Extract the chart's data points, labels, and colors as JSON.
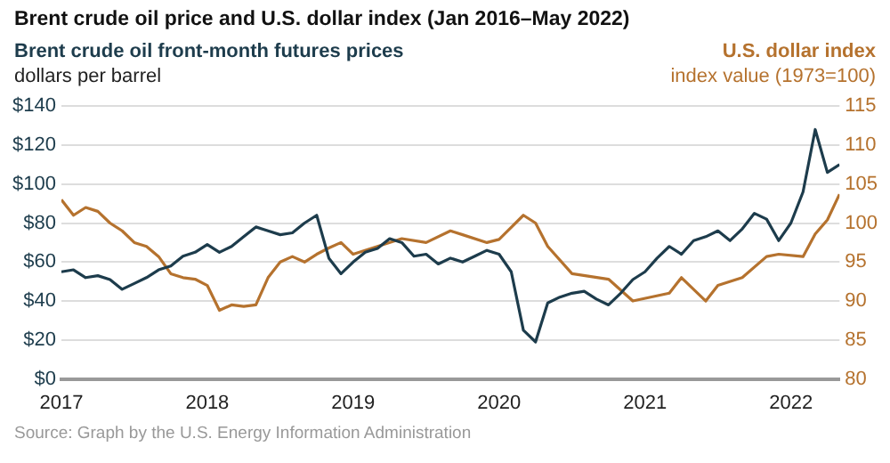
{
  "chart_data": {
    "type": "line",
    "title": "Brent crude oil price and U.S. dollar index (Jan 2016–May 2022)",
    "ylabel": "dollars per barrel",
    "y2label": "index value (1973=100)",
    "annotations": [
      "Source: Graph by the U.S. Energy Information Administration"
    ],
    "series": [
      {
        "name": "Brent crude oil front-month futures prices",
        "color": "#1d3c4c",
        "x": [
          "2017-01",
          "2017-02",
          "2017-03",
          "2017-04",
          "2017-05",
          "2017-06",
          "2017-07",
          "2017-08",
          "2017-09",
          "2017-10",
          "2017-11",
          "2017-12",
          "2018-01",
          "2018-02",
          "2018-03",
          "2018-04",
          "2018-05",
          "2018-06",
          "2018-07",
          "2018-08",
          "2018-09",
          "2018-10",
          "2018-11",
          "2018-12",
          "2019-01",
          "2019-02",
          "2019-03",
          "2019-04",
          "2019-05",
          "2019-06",
          "2019-07",
          "2019-08",
          "2019-09",
          "2019-10",
          "2019-11",
          "2019-12",
          "2020-01",
          "2020-02",
          "2020-03",
          "2020-04",
          "2020-05",
          "2020-06",
          "2020-07",
          "2020-08",
          "2020-09",
          "2020-10",
          "2020-11",
          "2020-12",
          "2021-01",
          "2021-02",
          "2021-03",
          "2021-04",
          "2021-05",
          "2021-06",
          "2021-07",
          "2021-08",
          "2021-09",
          "2021-10",
          "2021-11",
          "2021-12",
          "2022-01",
          "2022-02",
          "2022-03",
          "2022-04",
          "2022-05"
        ],
        "values": [
          55,
          56,
          52,
          53,
          51,
          46,
          49,
          52,
          56,
          58,
          63,
          65,
          69,
          65,
          68,
          73,
          78,
          76,
          74,
          75,
          80,
          84,
          62,
          54,
          60,
          65,
          67,
          72,
          70,
          63,
          64,
          59,
          62,
          60,
          63,
          66,
          64,
          55,
          25,
          19,
          39,
          42,
          44,
          45,
          41,
          38,
          44,
          51,
          55,
          62,
          68,
          64,
          71,
          73,
          76,
          71,
          77,
          85,
          82,
          71,
          80,
          96,
          128,
          106,
          110
        ]
      },
      {
        "name": "U.S. dollar index",
        "color": "#b5722e",
        "axis": "y2",
        "x": [
          "2017-01",
          "2017-02",
          "2017-03",
          "2017-04",
          "2017-05",
          "2017-06",
          "2017-07",
          "2017-08",
          "2017-09",
          "2017-10",
          "2017-11",
          "2017-12",
          "2018-01",
          "2018-02",
          "2018-03",
          "2018-04",
          "2018-05",
          "2018-06",
          "2018-07",
          "2018-08",
          "2018-09",
          "2018-10",
          "2018-11",
          "2018-12",
          "2019-01",
          "2019-03",
          "2019-05",
          "2019-07",
          "2019-09",
          "2019-10",
          "2019-12",
          "2020-01",
          "2020-03",
          "2020-04",
          "2020-05",
          "2020-07",
          "2020-10",
          "2020-12",
          "2021-03",
          "2021-04",
          "2021-06",
          "2021-07",
          "2021-09",
          "2021-11",
          "2021-12",
          "2022-02",
          "2022-03",
          "2022-04",
          "2022-05"
        ],
        "values": [
          103,
          101,
          102,
          101.5,
          100,
          99,
          97.5,
          97,
          95.7,
          93.5,
          93,
          92.8,
          92,
          88.8,
          89.5,
          89.3,
          89.5,
          93,
          95,
          95.7,
          95,
          96,
          96.8,
          97.5,
          96,
          97,
          98,
          97.5,
          99,
          98.5,
          97.5,
          97.9,
          101,
          100,
          97,
          93.5,
          92.8,
          90,
          91,
          93,
          90,
          92,
          93,
          95.7,
          96,
          95.7,
          98.6,
          100.4,
          103.7
        ]
      }
    ],
    "xlim": [
      "2017-01",
      "2022-05"
    ],
    "xticks": [
      "2017",
      "2018",
      "2019",
      "2020",
      "2021",
      "2022"
    ],
    "ylim": [
      0,
      140
    ],
    "yticks": [
      {
        "value": 0,
        "label": "$0"
      },
      {
        "value": 20,
        "label": "$20"
      },
      {
        "value": 40,
        "label": "$40"
      },
      {
        "value": 60,
        "label": "$60"
      },
      {
        "value": 80,
        "label": "$80"
      },
      {
        "value": 100,
        "label": "$100"
      },
      {
        "value": 120,
        "label": "$120"
      },
      {
        "value": 140,
        "label": "$140"
      }
    ],
    "y2lim": [
      80,
      115
    ],
    "y2ticks": [
      80,
      85,
      90,
      95,
      100,
      105,
      110,
      115
    ],
    "grid": "y",
    "legend": false,
    "marker": "none",
    "line_style": "solid"
  }
}
